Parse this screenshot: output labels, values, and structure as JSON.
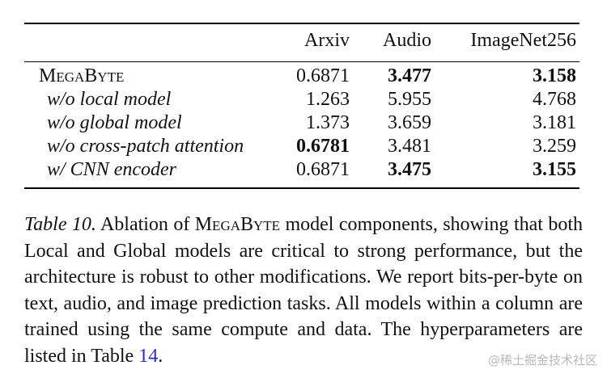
{
  "table": {
    "columns": [
      "",
      "Arxiv",
      "Audio",
      "ImageNet256"
    ],
    "rows": [
      {
        "name": "MegaByte",
        "values": [
          "0.6871",
          "3.477",
          "3.158"
        ],
        "bold": [
          false,
          true,
          true
        ]
      },
      {
        "name": "w/o local model",
        "values": [
          "1.263",
          "5.955",
          "4.768"
        ],
        "bold": [
          false,
          false,
          false
        ]
      },
      {
        "name": "w/o global model",
        "values": [
          "1.373",
          "3.659",
          "3.181"
        ],
        "bold": [
          false,
          false,
          false
        ]
      },
      {
        "name": "w/o cross-patch attention",
        "values": [
          "0.6781",
          "3.481",
          "3.259"
        ],
        "bold": [
          true,
          false,
          false
        ]
      },
      {
        "name": "w/ CNN encoder",
        "values": [
          "0.6871",
          "3.475",
          "3.155"
        ],
        "bold": [
          false,
          true,
          true
        ]
      }
    ]
  },
  "caption": {
    "label": "Table 10.",
    "text_1": " Ablation of ",
    "model_name": "MegaByte",
    "text_2": " model components, showing that both Local and Global models are critical to strong performance, but the architecture is robust to other modifications. We report bits-per-byte on text, audio, and image prediction tasks. All models within a column are trained using the same compute and data. The hyperparameters are listed in Table ",
    "table_ref": "14",
    "text_3": "."
  },
  "watermark": "@稀土掘金技术社区"
}
